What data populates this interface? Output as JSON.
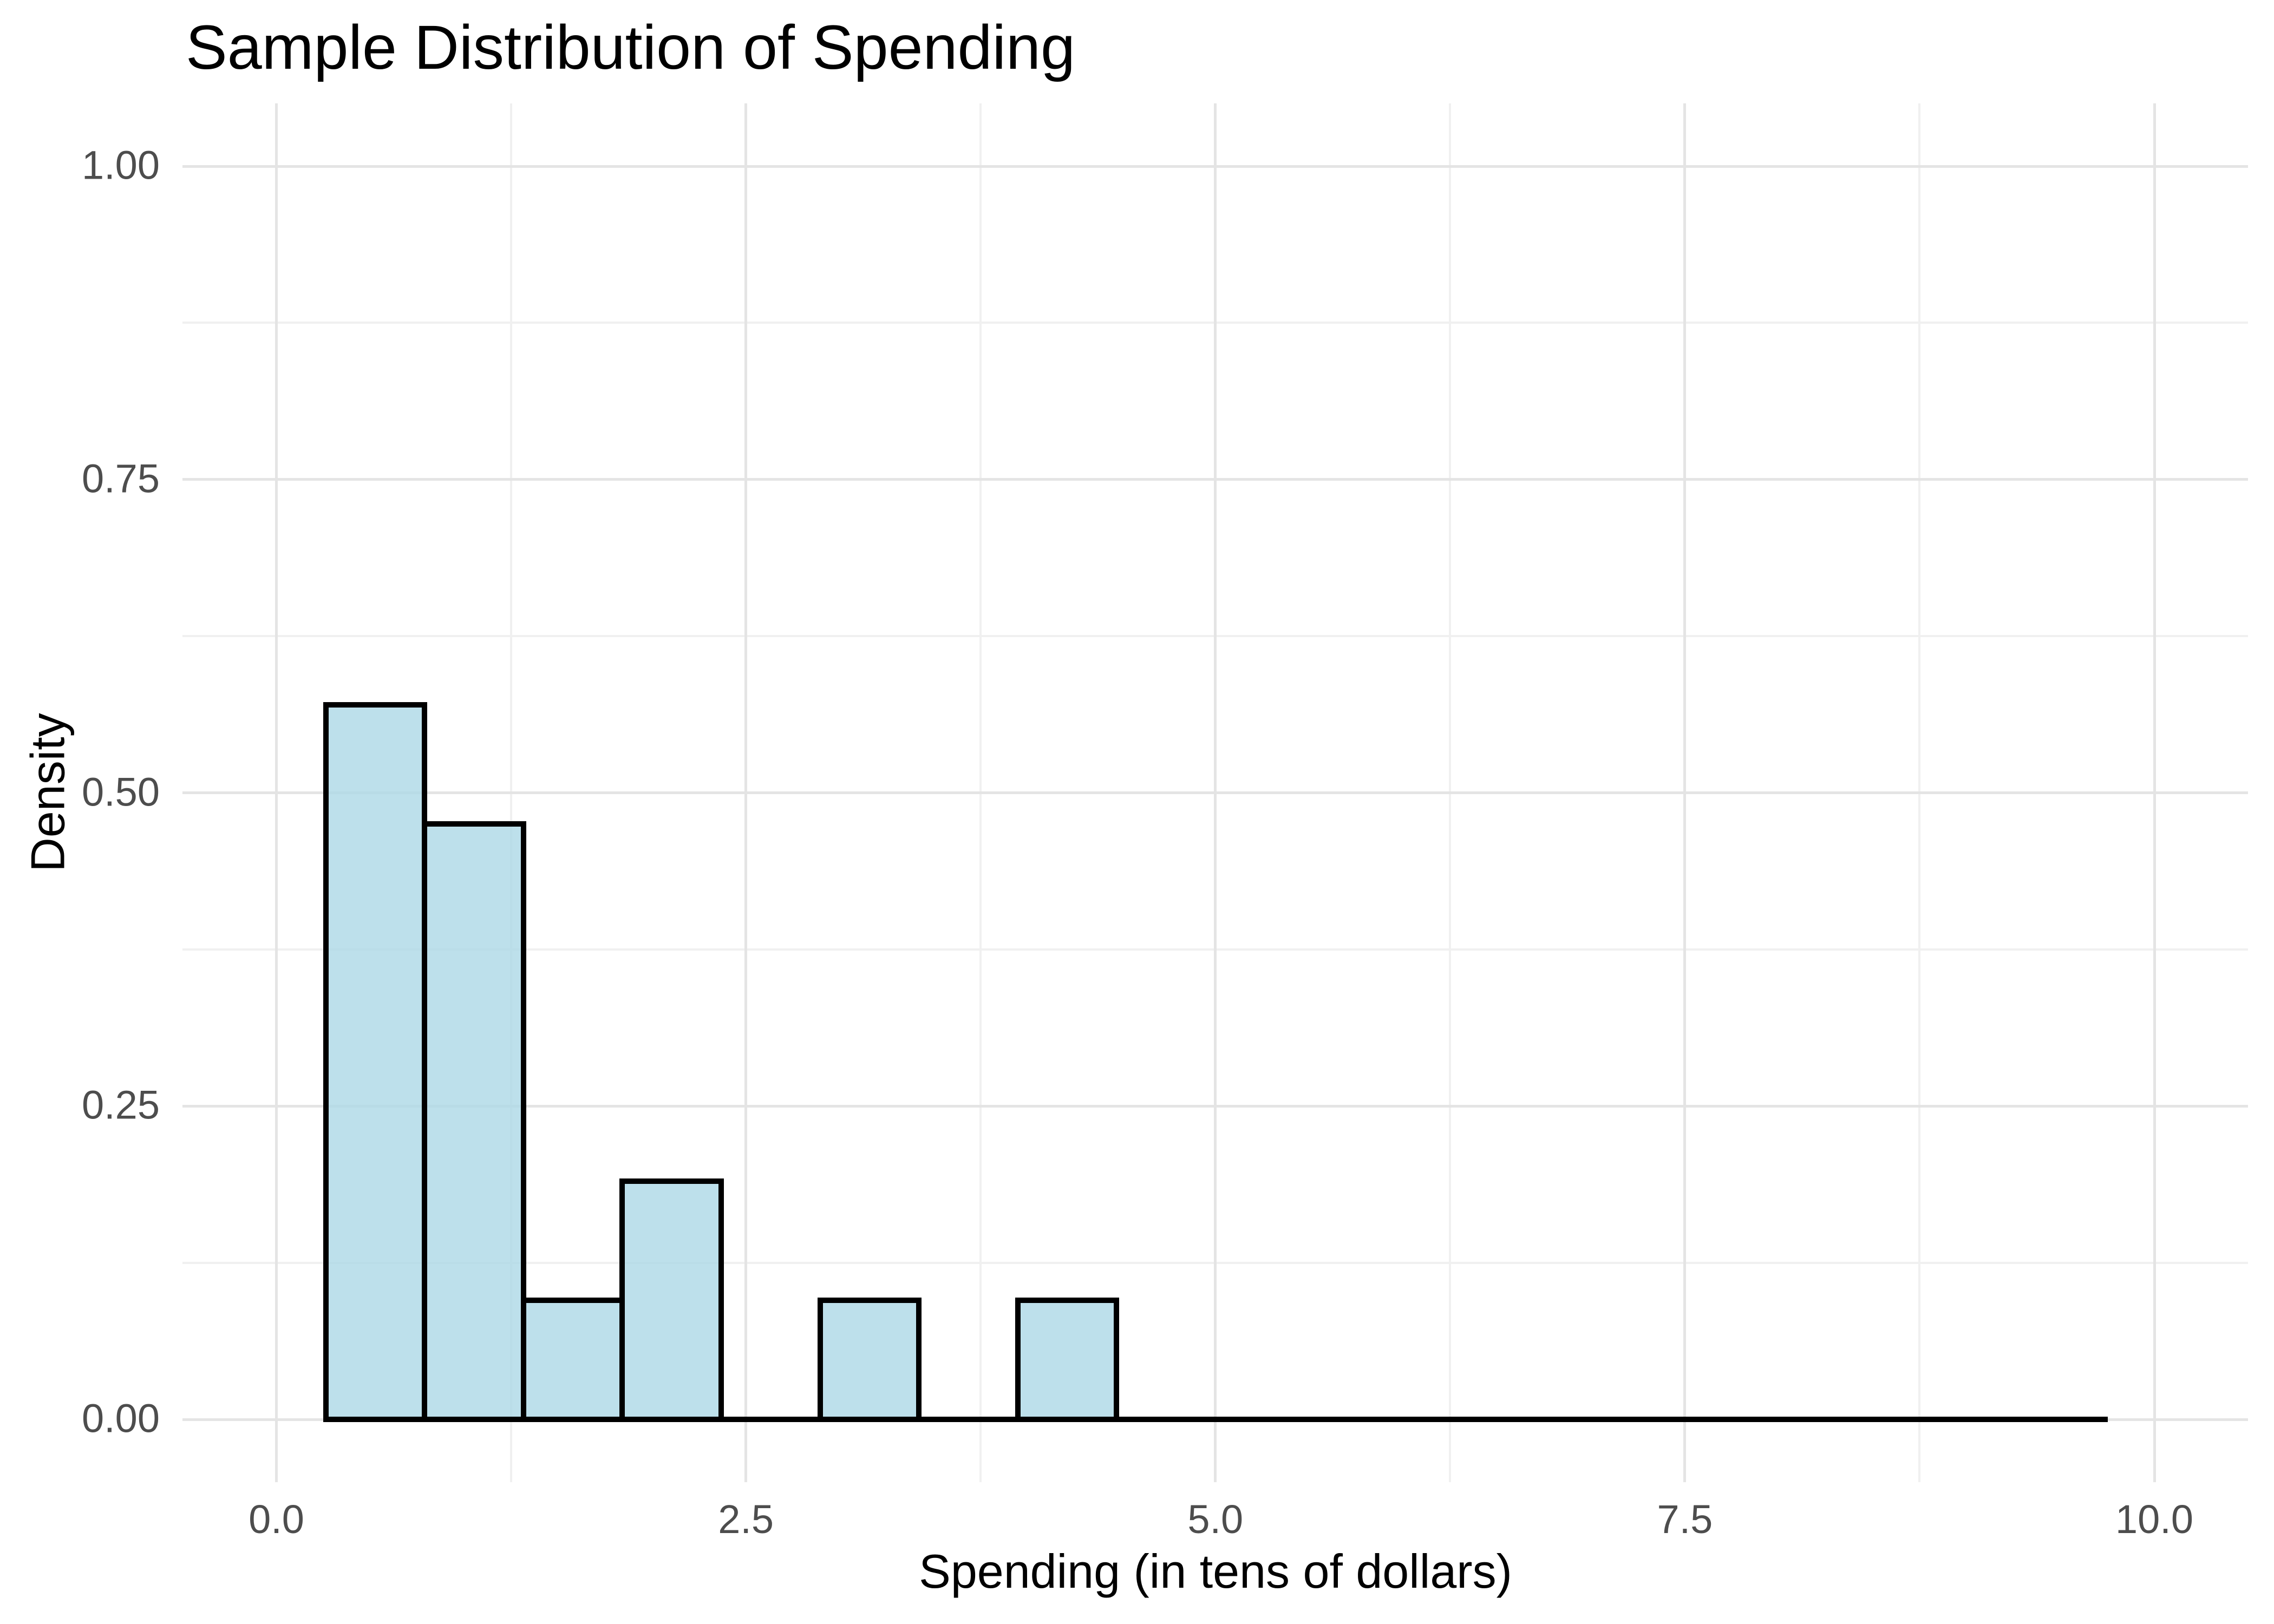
{
  "chart_data": {
    "type": "bar",
    "subtype": "histogram",
    "title": "Sample Distribution of Spending",
    "xlabel": "Spending (in tens of dollars)",
    "ylabel": "Density",
    "x_axis": {
      "range": [
        -0.5,
        10.5
      ],
      "major_ticks": [
        {
          "value": 0.0,
          "label": "0.0"
        },
        {
          "value": 2.5,
          "label": "2.5"
        },
        {
          "value": 5.0,
          "label": "5.0"
        },
        {
          "value": 7.5,
          "label": "7.5"
        },
        {
          "value": 10.0,
          "label": "10.0"
        }
      ],
      "minor_ticks": [
        1.25,
        3.75,
        6.25,
        8.75
      ]
    },
    "y_axis": {
      "range": [
        -0.05,
        1.05
      ],
      "major_ticks": [
        {
          "value": 0.0,
          "label": "0.00"
        },
        {
          "value": 0.25,
          "label": "0.25"
        },
        {
          "value": 0.5,
          "label": "0.50"
        },
        {
          "value": 0.75,
          "label": "0.75"
        },
        {
          "value": 1.0,
          "label": "1.00"
        }
      ],
      "minor_ticks": [
        0.125,
        0.375,
        0.625,
        0.875
      ]
    },
    "bins": [
      {
        "x0": 0.263,
        "x1": 0.789,
        "density": 0.57
      },
      {
        "x0": 0.789,
        "x1": 1.316,
        "density": 0.475
      },
      {
        "x0": 1.316,
        "x1": 1.842,
        "density": 0.095
      },
      {
        "x0": 1.842,
        "x1": 2.368,
        "density": 0.19
      },
      {
        "x0": 2.368,
        "x1": 2.895,
        "density": 0
      },
      {
        "x0": 2.895,
        "x1": 3.421,
        "density": 0.095
      },
      {
        "x0": 3.421,
        "x1": 3.947,
        "density": 0
      },
      {
        "x0": 3.947,
        "x1": 4.474,
        "density": 0.095
      },
      {
        "x0": 4.474,
        "x1": 9.737,
        "density": 0
      }
    ],
    "baseline": {
      "x0": 0.263,
      "x1": 9.737,
      "y": 0
    },
    "legend": false,
    "grid": true,
    "colors": {
      "bar_fill": "173,216,230",
      "bar_fill_alpha": 0.8,
      "bar_stroke": "#000000",
      "grid_major": "#e4e4e4",
      "grid_minor": "#f0f0f0",
      "tick_text": "#4d4d4d",
      "title_text": "#000000",
      "background": "#ffffff"
    }
  }
}
